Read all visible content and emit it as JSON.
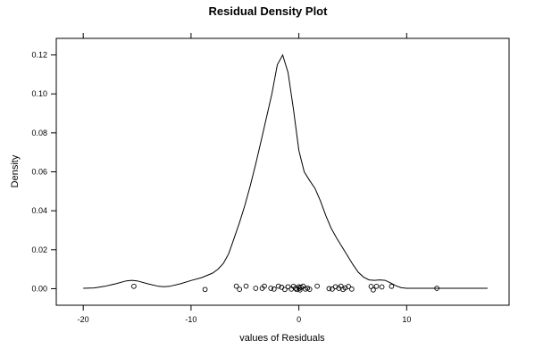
{
  "chart_data": {
    "type": "line",
    "title": "Residual Density Plot",
    "xlabel": "values of Residuals",
    "ylabel": "Density",
    "xlim": [
      -22.5,
      19.5
    ],
    "ylim": [
      -0.0085,
      0.1285
    ],
    "xticks": [
      -20,
      -10,
      0,
      10
    ],
    "yticks": [
      0.0,
      0.02,
      0.04,
      0.06,
      0.08,
      0.1,
      0.12
    ],
    "ytick_labels": [
      "0.00",
      "0.02",
      "0.04",
      "0.06",
      "0.08",
      "0.10",
      "0.12"
    ],
    "grid": false,
    "legend": "none",
    "series": [
      {
        "style": "density-curve",
        "x": [
          -20.0,
          -19.0,
          -18.0,
          -17.0,
          -16.0,
          -15.5,
          -15.0,
          -14.0,
          -13.0,
          -12.5,
          -12.0,
          -11.0,
          -10.0,
          -9.0,
          -8.0,
          -7.5,
          -7.0,
          -6.5,
          -6.0,
          -5.5,
          -5.0,
          -4.5,
          -4.0,
          -3.5,
          -3.0,
          -2.5,
          -2.0,
          -1.5,
          -1.0,
          -0.5,
          0.0,
          0.5,
          1.0,
          1.5,
          2.0,
          2.5,
          3.0,
          3.5,
          4.0,
          4.5,
          5.0,
          5.5,
          6.0,
          6.5,
          7.0,
          7.5,
          8.0,
          8.5,
          9.0,
          9.5,
          10.0,
          11.0,
          12.0,
          13.0,
          14.0,
          15.0,
          16.0,
          17.0,
          17.5
        ],
        "y": [
          0.0002,
          0.0004,
          0.0012,
          0.0025,
          0.004,
          0.0043,
          0.004,
          0.0025,
          0.0012,
          0.001,
          0.0012,
          0.0025,
          0.0042,
          0.0057,
          0.008,
          0.01,
          0.013,
          0.018,
          0.026,
          0.034,
          0.043,
          0.053,
          0.064,
          0.076,
          0.088,
          0.1,
          0.115,
          0.12,
          0.111,
          0.092,
          0.071,
          0.06,
          0.0555,
          0.0515,
          0.045,
          0.0375,
          0.031,
          0.026,
          0.0215,
          0.017,
          0.0125,
          0.0085,
          0.006,
          0.0045,
          0.0043,
          0.0045,
          0.0043,
          0.003,
          0.0015,
          0.0005,
          0.0002,
          0.0002,
          0.0002,
          0.0002,
          0.0002,
          0.0002,
          0.0002,
          0.0002,
          0.0002
        ]
      },
      {
        "style": "rug-points",
        "x": [
          -15.3,
          -8.7,
          -5.8,
          -5.5,
          -4.9,
          -4.0,
          -3.4,
          -3.2,
          -2.6,
          -2.3,
          -1.9,
          -1.6,
          -1.3,
          -1.0,
          -0.7,
          -0.5,
          -0.3,
          -0.2,
          0.0,
          0.05,
          0.1,
          0.2,
          0.4,
          0.6,
          0.8,
          1.0,
          1.7,
          2.8,
          3.1,
          3.4,
          3.7,
          3.9,
          4.1,
          4.3,
          4.6,
          4.9,
          6.7,
          6.9,
          7.2,
          7.7,
          8.6,
          12.8
        ],
        "y": [
          0.0012,
          -0.0004,
          0.0013,
          -0.0003,
          0.0013,
          0.0002,
          0.0002,
          0.0013,
          0.0002,
          -0.0002,
          0.0013,
          0.0007,
          -0.0004,
          0.001,
          -0.0002,
          0.0012,
          0.0002,
          -0.0004,
          0.001,
          0.0002,
          -0.0006,
          0.0007,
          0.0013,
          -0.0002,
          0.0003,
          -0.0003,
          0.0013,
          0.0,
          -0.0002,
          0.001,
          0.0002,
          0.0013,
          -0.0004,
          0.0004,
          0.0011,
          -0.0002,
          0.0011,
          -0.0006,
          0.0012,
          0.0009,
          0.0012,
          0.0002
        ]
      }
    ]
  }
}
